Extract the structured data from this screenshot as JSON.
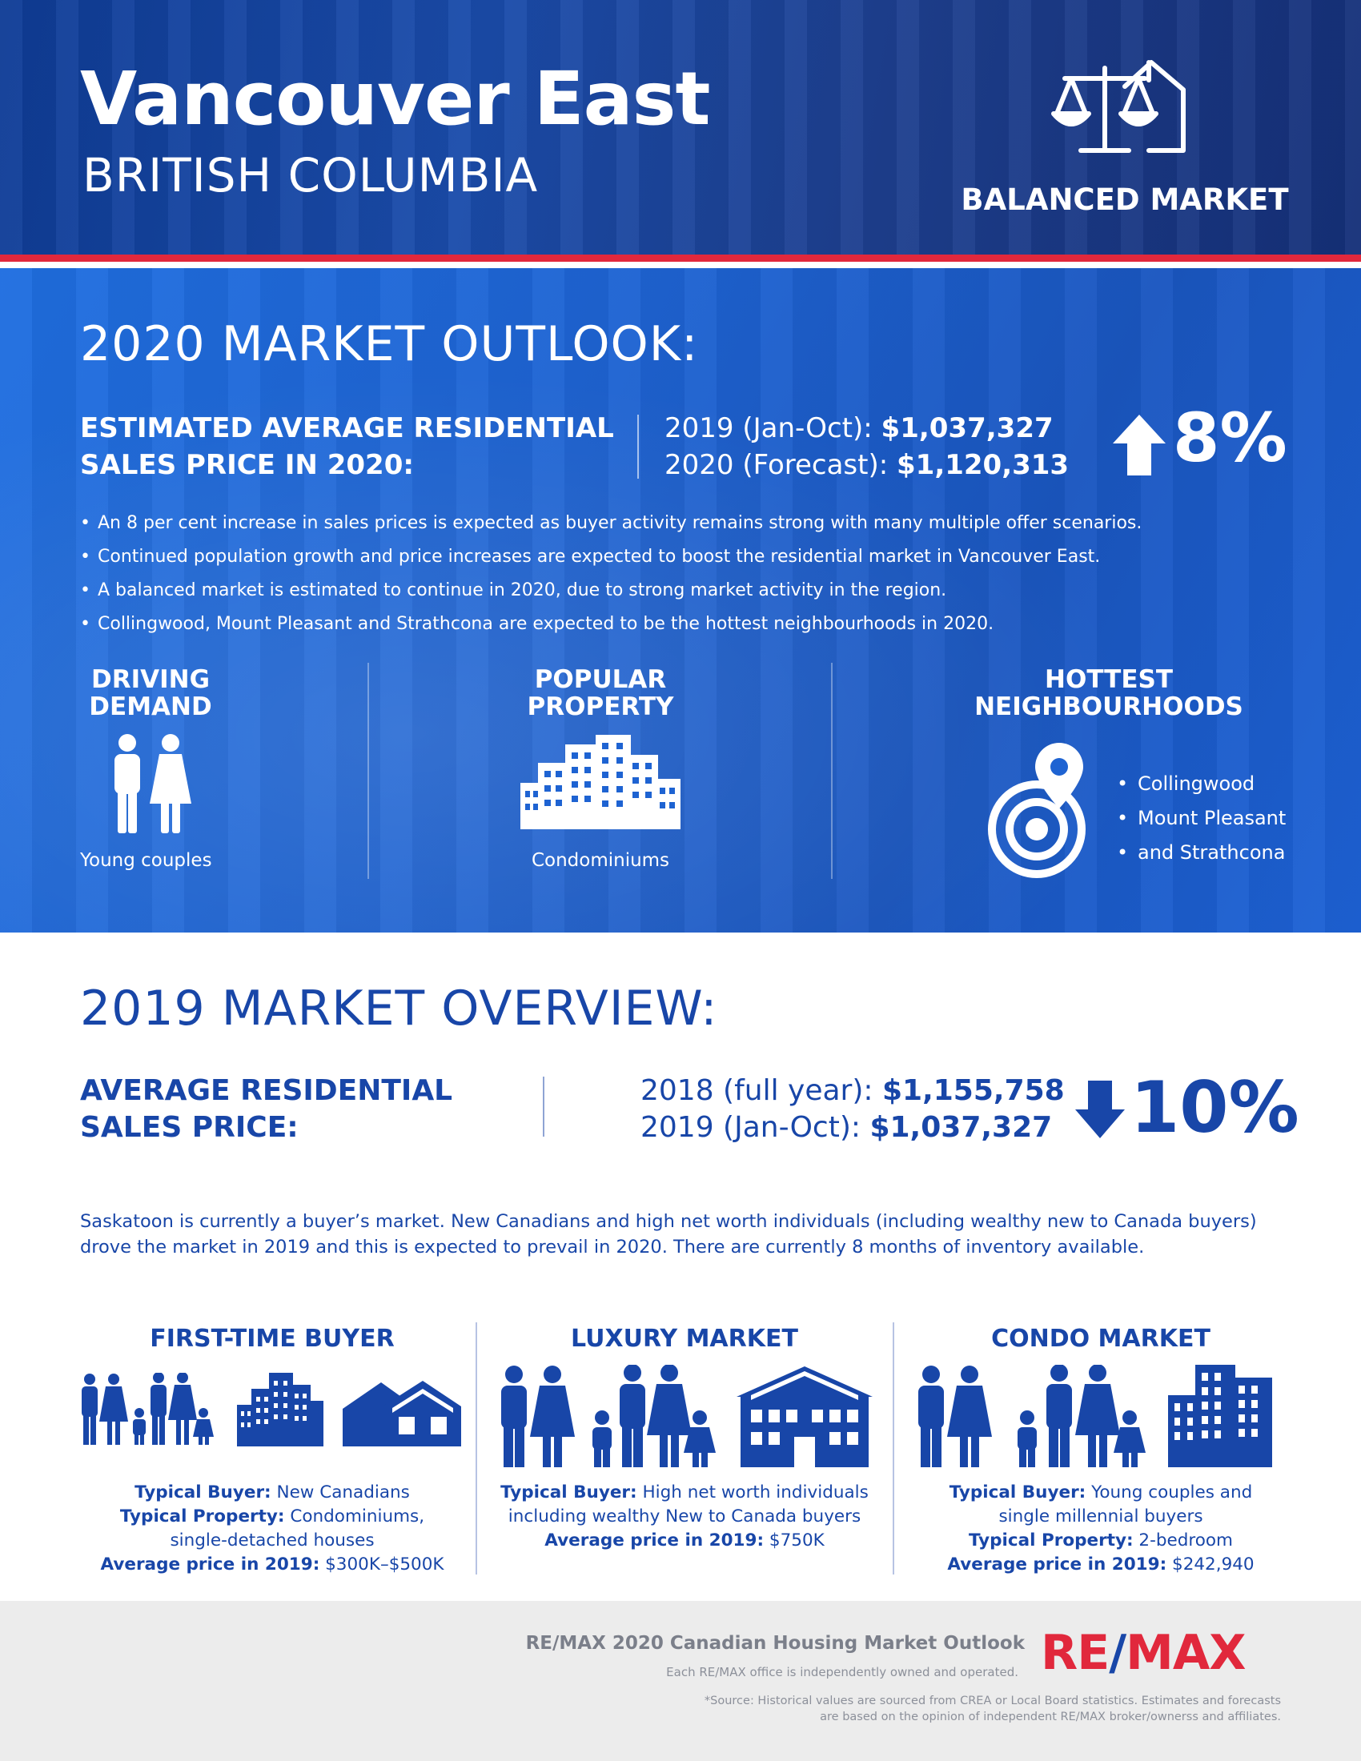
{
  "header": {
    "title": "Vancouver East",
    "subtitle": "BRITISH COLUMBIA",
    "market_badge": "BALANCED MARKET"
  },
  "outlook": {
    "heading": "2020 MARKET OUTLOOK:",
    "label_line1": "ESTIMATED AVERAGE RESIDENTIAL",
    "label_line2": "SALES PRICE IN 2020:",
    "price1_label": "2019 (Jan-Oct): ",
    "price1_value": "$1,037,327",
    "price2_label": "2020 (Forecast): ",
    "price2_value": "$1,120,313",
    "change": "8%",
    "change_direction": "up",
    "bullets": [
      "An 8 per cent increase in sales prices is expected as buyer activity remains strong with many multiple offer scenarios.",
      "Continued population growth and price increases are expected to boost the residential market in Vancouver East.",
      "A balanced market is estimated to continue in 2020, due to strong market activity in the region.",
      "Collingwood, Mount Pleasant and Strathcona are expected to be the hottest neighbourhoods in 2020."
    ],
    "driving_demand": {
      "line1": "DRIVING",
      "line2": "DEMAND",
      "caption": "Young couples"
    },
    "popular_property": {
      "line1": "POPULAR",
      "line2": "PROPERTY",
      "caption": "Condominiums"
    },
    "hottest": {
      "line1": "HOTTEST",
      "line2": "NEIGHBOURHOODS",
      "items": [
        "Collingwood",
        "Mount Pleasant",
        "and Strathcona"
      ]
    }
  },
  "overview": {
    "heading": "2019 MARKET OVERVIEW:",
    "label_line1": "AVERAGE RESIDENTIAL",
    "label_line2": "SALES PRICE:",
    "price1_label": "2018 (full year): ",
    "price1_value": "$1,155,758",
    "price2_label": "2019 (Jan-Oct): ",
    "price2_value": "$1,037,327",
    "change": "10%",
    "change_direction": "down",
    "paragraph": "Saskatoon is currently a buyer’s market. New Canadians and high net worth individuals (including wealthy new to Canada buyers) drove the market in 2019 and this is expected to prevail in 2020. There are currently 8 months of inventory available."
  },
  "segments": [
    {
      "title": "FIRST-TIME BUYER",
      "buyer_label": "Typical Buyer:",
      "buyer_value": " New Canadians",
      "property_label": "Typical Property:",
      "property_value": " Condominiums,",
      "property_value2": "single-detached houses",
      "price_label": "Average price in 2019:",
      "price_value": " $300K–$500K"
    },
    {
      "title": "LUXURY MARKET",
      "buyer_label": "Typical Buyer:",
      "buyer_value": " High net worth individuals",
      "buyer_value2": "including wealthy New to Canada buyers",
      "price_label": "Average price in 2019:",
      "price_value": " $750K"
    },
    {
      "title": "CONDO MARKET",
      "buyer_label": "Typical Buyer:",
      "buyer_value": " Young couples and",
      "buyer_value2": "single millennial buyers",
      "property_label": "Typical Property:",
      "property_value": " 2-bedroom",
      "price_label": "Average price in 2019:",
      "price_value": " $242,940"
    }
  ],
  "footer": {
    "title": "RE/MAX 2020 Canadian Housing Market Outlook",
    "subtitle": "Each RE/MAX office is independently owned and operated.",
    "source_line1": "*Source: Historical values are sourced from CREA or Local Board statistics. Estimates and forecasts",
    "source_line2": "are based on the opinion of independent RE/MAX broker/ownerss and affiliates.",
    "logo_part1": "RE",
    "logo_slash": "/",
    "logo_part2": "MAX"
  },
  "colors": {
    "brand_blue": "#1846a8",
    "header_blue": "#153079",
    "outlook_blue": "#1e63d2",
    "remax_red": "#e1283c"
  },
  "icons": [
    "balance-scale-house-icon",
    "up-arrow-icon",
    "down-arrow-icon",
    "couple-icon",
    "condo-buildings-icon",
    "location-target-icon",
    "family-icon",
    "house-icon",
    "mansion-icon"
  ]
}
